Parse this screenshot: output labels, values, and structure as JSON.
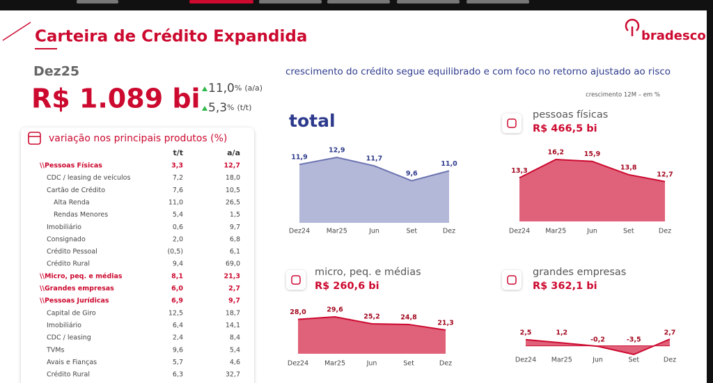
{
  "header": {
    "title": "Carteira de Crédito Expandida",
    "brand": "bradesco"
  },
  "summary": {
    "period": "Dez25",
    "total": "R$ 1.089 bi",
    "growth": [
      {
        "value": "11,0",
        "unit": "%",
        "period": "(a/a)"
      },
      {
        "value": "5,3",
        "unit": "%",
        "period": "(t/t)"
      }
    ]
  },
  "headline": "crescimento do crédito segue equilibrado e com foco no retorno ajustado ao risco",
  "note": "crescimento 12M – em %",
  "table": {
    "title": "variação nos principais produtos (%)",
    "columns": [
      "t/t",
      "a/a"
    ],
    "rows": [
      {
        "label": "\\\\Pessoas Físicas",
        "tt": "3,3",
        "aa": "12,7",
        "level": 0
      },
      {
        "label": "CDC / leasing de veículos",
        "tt": "7,2",
        "aa": "18,0",
        "level": 1
      },
      {
        "label": "Cartão de Crédito",
        "tt": "7,6",
        "aa": "10,5",
        "level": 1
      },
      {
        "label": "Alta Renda",
        "tt": "11,0",
        "aa": "26,5",
        "level": 2
      },
      {
        "label": "Rendas Menores",
        "tt": "5,4",
        "aa": "1,5",
        "level": 2
      },
      {
        "label": "Imobiliário",
        "tt": "0,6",
        "aa": "9,7",
        "level": 1
      },
      {
        "label": "Consignado",
        "tt": "2,0",
        "aa": "6,8",
        "level": 1
      },
      {
        "label": "Crédito Pessoal",
        "tt": "(0,5)",
        "aa": "6,1",
        "level": 1
      },
      {
        "label": "Crédito Rural",
        "tt": "9,4",
        "aa": "69,0",
        "level": 1
      },
      {
        "label": "\\\\Micro, peq. e médias",
        "tt": "8,1",
        "aa": "21,3",
        "level": 0
      },
      {
        "label": "\\\\Grandes empresas",
        "tt": "6,0",
        "aa": "2,7",
        "level": 0
      },
      {
        "label": "\\\\Pessoas Jurídicas",
        "tt": "6,9",
        "aa": "9,7",
        "level": 0
      },
      {
        "label": "Capital de Giro",
        "tt": "12,5",
        "aa": "18,7",
        "level": 1
      },
      {
        "label": "Imobiliário",
        "tt": "6,4",
        "aa": "14,1",
        "level": 1
      },
      {
        "label": "CDC / leasing",
        "tt": "2,4",
        "aa": "8,4",
        "level": 1
      },
      {
        "label": "TVMs",
        "tt": "9,6",
        "aa": "5,4",
        "level": 1
      },
      {
        "label": "Avais e Fianças",
        "tt": "5,7",
        "aa": "4,6",
        "level": 1
      },
      {
        "label": "Crédito Rural",
        "tt": "6,3",
        "aa": "32,7",
        "level": 1
      }
    ]
  },
  "chart_data": [
    {
      "type": "area",
      "title": "total",
      "categories": [
        "Dez24",
        "Mar25",
        "Jun",
        "Set",
        "Dez"
      ],
      "values": [
        11.9,
        12.9,
        11.7,
        9.6,
        11.0
      ],
      "value_labels": [
        "11,9",
        "12,9",
        "11,7",
        "9,6",
        "11,0"
      ],
      "color": "#6b73b0"
    },
    {
      "type": "area",
      "title": "pessoas físicas",
      "subtitle": "R$ 466,5 bi",
      "categories": [
        "Dez24",
        "Mar25",
        "Jun",
        "Set",
        "Dez"
      ],
      "values": [
        13.3,
        16.2,
        15.9,
        13.8,
        12.7
      ],
      "value_labels": [
        "13,3",
        "16,2",
        "15,9",
        "13,8",
        "12,7"
      ],
      "color": "#cc092f"
    },
    {
      "type": "area",
      "title": "micro, peq. e médias",
      "subtitle": "R$ 260,6 bi",
      "categories": [
        "Dez24",
        "Mar25",
        "Jun",
        "Set",
        "Dez"
      ],
      "values": [
        28.0,
        29.6,
        25.2,
        24.8,
        21.3
      ],
      "value_labels": [
        "28,0",
        "29,6",
        "25,2",
        "24,8",
        "21,3"
      ],
      "color": "#cc092f"
    },
    {
      "type": "area",
      "title": "grandes empresas",
      "subtitle": "R$ 362,1 bi",
      "categories": [
        "Dez24",
        "Mar25",
        "Jun",
        "Set",
        "Dez"
      ],
      "values": [
        2.5,
        1.2,
        -0.2,
        -3.5,
        2.7
      ],
      "value_labels": [
        "2,5",
        "1,2",
        "-0,2",
        "-3,5",
        "2,7"
      ],
      "color": "#cc092f"
    }
  ]
}
